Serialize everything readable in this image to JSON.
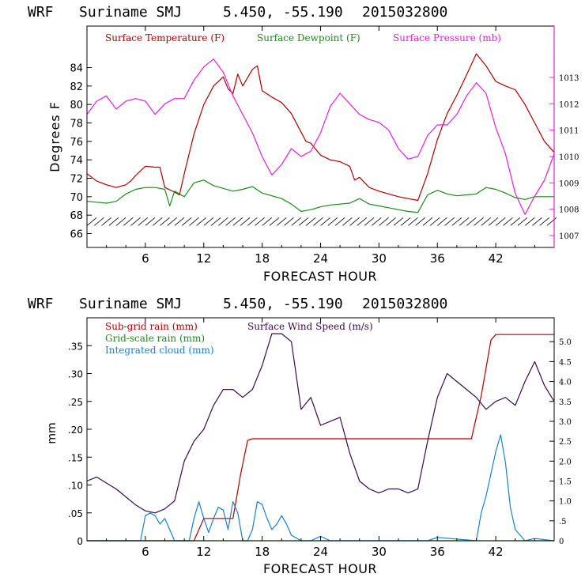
{
  "colors": {
    "temp": "#b00000",
    "dew": "#1a8a1a",
    "pressure": "#e020e0",
    "subgrid": "#b00000",
    "gridscale": "#1a8a1a",
    "cloud": "#1a80d0",
    "wind": "#3a0a4a",
    "axis": "#000000"
  },
  "chart_data": [
    {
      "type": "line",
      "header": {
        "model": "WRF",
        "site": "Suriname SMJ",
        "coords": "5.450, -55.190",
        "date": "2015032800"
      },
      "xlabel": "FORECAST HOUR",
      "ylabel": "Degrees F",
      "xlim": [
        0,
        48
      ],
      "xticks": [
        "6",
        "12",
        "18",
        "24",
        "30",
        "36",
        "42"
      ],
      "xtick_values": [
        6,
        12,
        18,
        24,
        30,
        36,
        42
      ],
      "ylim": [
        64.5,
        88.5
      ],
      "yticks": [
        "66",
        "68",
        "70",
        "72",
        "74",
        "76",
        "78",
        "80",
        "82",
        "84"
      ],
      "ytick_values": [
        66,
        68,
        70,
        72,
        74,
        76,
        78,
        80,
        82,
        84
      ],
      "y2lim": [
        1006.55,
        1014.95
      ],
      "y2ticks": [
        "1007",
        "1008",
        "1009",
        "1010",
        "1011",
        "1012",
        "1013"
      ],
      "y2tick_values": [
        1007,
        1008,
        1009,
        1010,
        1011,
        1012,
        1013
      ],
      "legend": [
        "Surface Temperature (F)",
        "Surface Dewpoint (F)",
        "Surface Pressure (mb)"
      ],
      "series": [
        {
          "name": "Surface Temperature (F)",
          "axis": "left",
          "x": [
            0,
            1,
            2,
            3,
            4,
            4.5,
            5,
            6,
            7,
            7.5,
            8,
            9,
            9.5,
            10,
            11,
            12,
            13,
            14,
            14.5,
            15,
            15.5,
            16,
            17,
            17.5,
            18,
            19,
            20,
            21,
            22,
            22.5,
            23,
            24,
            25,
            26,
            27,
            27.5,
            28,
            29,
            30,
            31,
            32,
            33,
            34,
            35,
            36,
            37,
            38,
            39,
            40,
            41,
            42,
            43,
            44,
            45,
            46,
            47,
            48
          ],
          "values": [
            72.5,
            71.7,
            71.3,
            71.0,
            71.3,
            71.7,
            72.3,
            73.3,
            73.2,
            73.2,
            71.0,
            70.5,
            70.2,
            72.5,
            76.8,
            80.0,
            82.0,
            83.0,
            81.7,
            81.2,
            83.3,
            82.0,
            83.8,
            84.2,
            81.5,
            80.8,
            80.2,
            79.0,
            77.0,
            76.0,
            75.8,
            74.5,
            74.0,
            73.8,
            73.3,
            71.8,
            72.1,
            71.0,
            70.6,
            70.3,
            70.0,
            69.8,
            69.6,
            72.5,
            76.2,
            79.0,
            81.0,
            83.2,
            85.5,
            84.2,
            82.5,
            82.0,
            81.6,
            80.0,
            78.0,
            76.0,
            74.8
          ]
        },
        {
          "name": "Surface Dewpoint (F)",
          "axis": "left",
          "x": [
            0,
            1,
            2,
            3,
            4,
            5,
            6,
            7,
            8,
            8.5,
            9,
            10,
            11,
            12,
            13,
            14,
            15,
            16,
            17,
            18,
            19,
            20,
            21,
            22,
            23,
            24,
            25,
            26,
            27,
            28,
            29,
            30,
            31,
            32,
            33,
            34,
            35,
            36,
            37,
            38,
            39,
            40,
            41,
            42,
            43,
            44,
            45,
            46,
            47,
            48
          ],
          "values": [
            69.5,
            69.4,
            69.3,
            69.5,
            70.3,
            70.8,
            71.0,
            71.0,
            70.8,
            69.0,
            70.6,
            70.0,
            71.5,
            71.8,
            71.2,
            70.9,
            70.6,
            70.8,
            71.1,
            70.4,
            70.1,
            69.8,
            69.2,
            68.4,
            68.6,
            68.9,
            69.1,
            69.2,
            69.3,
            69.8,
            69.2,
            69.0,
            68.8,
            68.6,
            68.4,
            68.3,
            70.2,
            70.7,
            70.3,
            70.1,
            70.2,
            70.3,
            71.0,
            70.8,
            70.4,
            69.9,
            69.7,
            70.0,
            70.0,
            70.0
          ]
        },
        {
          "name": "Surface Pressure (mb)",
          "axis": "right",
          "x": [
            0,
            1,
            2,
            3,
            4,
            5,
            6,
            7,
            8,
            9,
            10,
            11,
            12,
            13,
            14,
            15,
            16,
            17,
            18,
            19,
            20,
            21,
            22,
            23,
            24,
            25,
            26,
            27,
            28,
            29,
            30,
            31,
            32,
            33,
            34,
            35,
            36,
            37,
            38,
            39,
            40,
            41,
            42,
            43,
            44,
            45,
            46,
            47,
            48
          ],
          "values": [
            1011.6,
            1012.1,
            1012.3,
            1011.8,
            1012.1,
            1012.2,
            1012.1,
            1011.6,
            1012.0,
            1012.2,
            1012.2,
            1012.9,
            1013.4,
            1013.7,
            1013.2,
            1012.3,
            1011.6,
            1010.9,
            1010.0,
            1009.3,
            1009.7,
            1010.3,
            1010.0,
            1010.2,
            1010.9,
            1011.9,
            1012.4,
            1012.0,
            1011.6,
            1011.4,
            1011.3,
            1011.0,
            1010.3,
            1009.9,
            1010.0,
            1010.8,
            1011.2,
            1011.2,
            1011.6,
            1012.3,
            1012.8,
            1012.4,
            1011.1,
            1010.1,
            1008.6,
            1007.8,
            1008.5,
            1009.1,
            1010.1
          ]
        }
      ],
      "wind_barbs_y": 67.3
    },
    {
      "type": "line",
      "header": {
        "model": "WRF",
        "site": "Suriname SMJ",
        "coords": "5.450, -55.190",
        "date": "2015032800"
      },
      "xlabel": "FORECAST HOUR",
      "ylabel": "mm",
      "xlim": [
        0,
        48
      ],
      "xticks": [
        "6",
        "12",
        "18",
        "24",
        "30",
        "36",
        "42"
      ],
      "xtick_values": [
        6,
        12,
        18,
        24,
        30,
        36,
        42
      ],
      "ylim": [
        0,
        0.4
      ],
      "yticks": [
        "0",
        ".05",
        ".10",
        ".15",
        ".20",
        ".25",
        ".30",
        ".35"
      ],
      "ytick_values": [
        0,
        0.05,
        0.1,
        0.15,
        0.2,
        0.25,
        0.3,
        0.35
      ],
      "y2lim": [
        0,
        5.6
      ],
      "y2ticks": [
        "0",
        ".5",
        "1.0",
        "1.5",
        "2.0",
        "2.5",
        "3.0",
        "3.5",
        "4.0",
        "4.5",
        "5.0"
      ],
      "y2tick_values": [
        0,
        0.5,
        1.0,
        1.5,
        2.0,
        2.5,
        3.0,
        3.5,
        4.0,
        4.5,
        5.0
      ],
      "legend": [
        "Sub-grid rain (mm)",
        "Grid-scale rain (mm)",
        "Integrated cloud (mm)",
        "Surface Wind Speed (m/s)"
      ],
      "series": [
        {
          "name": "Sub-grid rain (mm)",
          "axis": "left",
          "x": [
            0,
            11,
            12,
            14,
            15.0,
            15.8,
            16.5,
            17,
            20,
            30,
            38,
            39.5,
            40.5,
            41.2,
            41.5,
            42,
            48
          ],
          "values": [
            0,
            0,
            0.04,
            0.04,
            0.04,
            0.12,
            0.18,
            0.183,
            0.183,
            0.183,
            0.183,
            0.183,
            0.26,
            0.33,
            0.36,
            0.37,
            0.37
          ]
        },
        {
          "name": "Grid-scale rain (mm)",
          "axis": "left",
          "x": [
            0,
            48
          ],
          "values": [
            0,
            0
          ]
        },
        {
          "name": "Integrated cloud (mm)",
          "axis": "left",
          "x": [
            0,
            5.5,
            6,
            6.5,
            7,
            7.5,
            8,
            9,
            10.5,
            11,
            11.5,
            12,
            12.5,
            13,
            13.5,
            14,
            14.5,
            15,
            15.5,
            16,
            16.5,
            17,
            17.5,
            18,
            18.5,
            19,
            19.5,
            20,
            20.5,
            21,
            22,
            23,
            24,
            25,
            26,
            30,
            35,
            36,
            40,
            40.5,
            41,
            41.5,
            42,
            42.5,
            43,
            43.5,
            44,
            45,
            46,
            48
          ],
          "values": [
            0,
            0,
            0.045,
            0.05,
            0.045,
            0.03,
            0.04,
            0,
            0,
            0.04,
            0.07,
            0.04,
            0.015,
            0.04,
            0.06,
            0.055,
            0.02,
            0.07,
            0.05,
            0,
            0,
            0.02,
            0.07,
            0.065,
            0.04,
            0.02,
            0.03,
            0.045,
            0.03,
            0.01,
            0,
            0,
            0.008,
            0,
            0,
            0,
            0,
            0.006,
            0,
            0.05,
            0.08,
            0.12,
            0.16,
            0.19,
            0.14,
            0.06,
            0.02,
            0,
            0.004,
            0
          ]
        },
        {
          "name": "Surface Wind Speed (m/s)",
          "axis": "right",
          "x": [
            0,
            1,
            2,
            3,
            4,
            5,
            6,
            7,
            8,
            9,
            10,
            11,
            12,
            13,
            14,
            15,
            16,
            17,
            18,
            19,
            20,
            21,
            22,
            23,
            24,
            25,
            26,
            27,
            28,
            29,
            30,
            31,
            32,
            33,
            34,
            35,
            36,
            37,
            38,
            39,
            40,
            41,
            42,
            43,
            44,
            45,
            46,
            47,
            48
          ],
          "values": [
            1.5,
            1.6,
            1.45,
            1.3,
            1.1,
            0.9,
            0.75,
            0.7,
            0.8,
            1.0,
            2.0,
            2.5,
            2.8,
            3.4,
            3.8,
            3.8,
            3.6,
            3.8,
            4.4,
            5.2,
            5.2,
            5.0,
            3.3,
            3.6,
            2.9,
            3.0,
            3.1,
            2.2,
            1.5,
            1.3,
            1.2,
            1.3,
            1.3,
            1.2,
            1.3,
            2.5,
            3.6,
            4.2,
            4.0,
            3.8,
            3.6,
            3.3,
            3.5,
            3.6,
            3.4,
            4.0,
            4.5,
            3.9,
            3.5
          ]
        }
      ]
    }
  ]
}
